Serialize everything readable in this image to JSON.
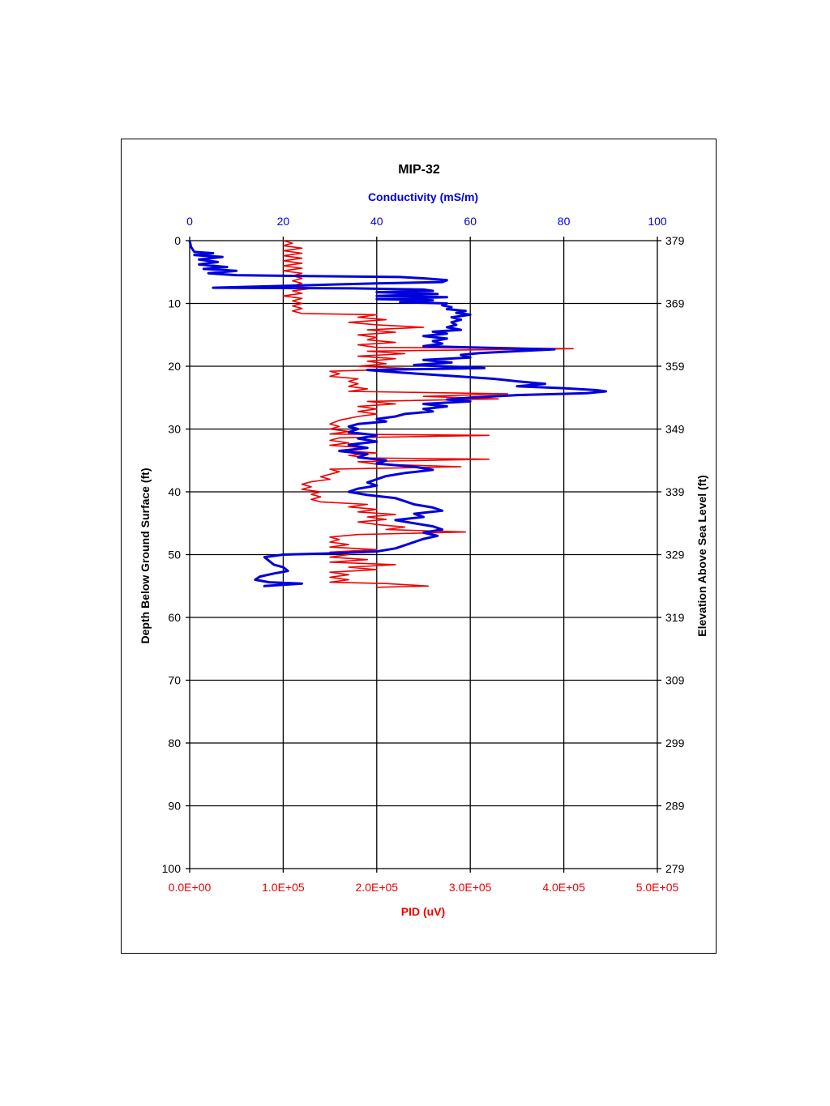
{
  "colors": {
    "conductivity": "#0000dd",
    "pid": "#ee0000",
    "text": "#000000",
    "grid": "#000000"
  },
  "chart_data": {
    "type": "line",
    "title": "MIP-32",
    "x_top": {
      "label": "Conductivity (mS/m)",
      "range": [
        0,
        100
      ],
      "ticks": [
        "0",
        "20",
        "40",
        "60",
        "80",
        "100"
      ]
    },
    "x_bottom": {
      "label": "PID (uV)",
      "range": [
        0,
        500000
      ],
      "ticks": [
        "0.0E+00",
        "1.0E+05",
        "2.0E+05",
        "3.0E+05",
        "4.0E+05",
        "5.0E+05"
      ]
    },
    "y_left": {
      "label": "Depth Below Ground Surface (ft)",
      "range": [
        0,
        100
      ],
      "inverted": true,
      "ticks": [
        "0",
        "10",
        "20",
        "30",
        "40",
        "50",
        "60",
        "70",
        "80",
        "90",
        "100"
      ]
    },
    "y_right": {
      "label": "Elevation Above Sea Level (ft)",
      "range": [
        379,
        279
      ],
      "ticks": [
        "379",
        "369",
        "359",
        "349",
        "339",
        "329",
        "319",
        "309",
        "299",
        "289",
        "279"
      ]
    },
    "grid": true,
    "series": [
      {
        "axis": "top",
        "color": "#0000dd",
        "points": [
          [
            0,
            0
          ],
          [
            0.3,
            1
          ],
          [
            1,
            1.8
          ],
          [
            5,
            2.0
          ],
          [
            1,
            2.3
          ],
          [
            7,
            2.6
          ],
          [
            2,
            3.0
          ],
          [
            6,
            3.4
          ],
          [
            2,
            3.8
          ],
          [
            8,
            4.2
          ],
          [
            3,
            4.5
          ],
          [
            10,
            4.8
          ],
          [
            4,
            5.2
          ],
          [
            10,
            5.5
          ],
          [
            20,
            5.6
          ],
          [
            45,
            5.8
          ],
          [
            50,
            6.0
          ],
          [
            55,
            6.3
          ],
          [
            54,
            6.6
          ],
          [
            40,
            6.8
          ],
          [
            30,
            7.0
          ],
          [
            5,
            7.5
          ],
          [
            35,
            7.6
          ],
          [
            50,
            7.8
          ],
          [
            52,
            8.0
          ],
          [
            40,
            8.2
          ],
          [
            53,
            8.5
          ],
          [
            40,
            8.8
          ],
          [
            55,
            9.0
          ],
          [
            40,
            9.3
          ],
          [
            52,
            9.5
          ],
          [
            45,
            9.8
          ],
          [
            55,
            10.0
          ],
          [
            54,
            10.3
          ],
          [
            56,
            10.6
          ],
          [
            55,
            10.9
          ],
          [
            59,
            11.2
          ],
          [
            57,
            11.5
          ],
          [
            60,
            11.8
          ],
          [
            56,
            12.2
          ],
          [
            58,
            12.6
          ],
          [
            56,
            13.0
          ],
          [
            57,
            13.4
          ],
          [
            55,
            13.8
          ],
          [
            58,
            14.2
          ],
          [
            52,
            14.5
          ],
          [
            55,
            14.8
          ],
          [
            50,
            15.2
          ],
          [
            55,
            15.6
          ],
          [
            52,
            16.0
          ],
          [
            54,
            16.4
          ],
          [
            50,
            16.8
          ],
          [
            60,
            17.0
          ],
          [
            78,
            17.3
          ],
          [
            70,
            17.6
          ],
          [
            62,
            17.9
          ],
          [
            58,
            18.2
          ],
          [
            60,
            18.6
          ],
          [
            50,
            19.0
          ],
          [
            56,
            19.4
          ],
          [
            48,
            19.8
          ],
          [
            63,
            20.3
          ],
          [
            38,
            20.6
          ],
          [
            45,
            21.0
          ],
          [
            55,
            21.5
          ],
          [
            65,
            22.0
          ],
          [
            70,
            22.4
          ],
          [
            76,
            22.8
          ],
          [
            70,
            23.2
          ],
          [
            80,
            23.5
          ],
          [
            87,
            23.8
          ],
          [
            89,
            24.0
          ],
          [
            85,
            24.3
          ],
          [
            70,
            24.6
          ],
          [
            60,
            25.0
          ],
          [
            55,
            25.3
          ],
          [
            60,
            25.6
          ],
          [
            50,
            26.0
          ],
          [
            55,
            26.4
          ],
          [
            50,
            26.8
          ],
          [
            52,
            27.2
          ],
          [
            46,
            27.6
          ],
          [
            44,
            28.0
          ],
          [
            40,
            28.4
          ],
          [
            42,
            28.8
          ],
          [
            36,
            29.2
          ],
          [
            34,
            29.6
          ],
          [
            36,
            30.0
          ],
          [
            34,
            30.5
          ],
          [
            40,
            31.0
          ],
          [
            36,
            31.5
          ],
          [
            40,
            32.0
          ],
          [
            34,
            32.5
          ],
          [
            38,
            33.0
          ],
          [
            32,
            33.5
          ],
          [
            38,
            34.0
          ],
          [
            36,
            34.5
          ],
          [
            42,
            35.0
          ],
          [
            40,
            35.5
          ],
          [
            48,
            36.0
          ],
          [
            52,
            36.5
          ],
          [
            46,
            37.0
          ],
          [
            42,
            37.5
          ],
          [
            40,
            38.0
          ],
          [
            38,
            38.5
          ],
          [
            40,
            39.0
          ],
          [
            36,
            39.5
          ],
          [
            34,
            40.0
          ],
          [
            38,
            40.5
          ],
          [
            44,
            41.0
          ],
          [
            46,
            41.5
          ],
          [
            48,
            42.0
          ],
          [
            52,
            42.5
          ],
          [
            54,
            43.0
          ],
          [
            48,
            43.5
          ],
          [
            50,
            44.0
          ],
          [
            44,
            44.5
          ],
          [
            48,
            45.0
          ],
          [
            52,
            45.5
          ],
          [
            54,
            46.0
          ],
          [
            50,
            46.5
          ],
          [
            53,
            47.0
          ],
          [
            50,
            47.5
          ],
          [
            48,
            48.0
          ],
          [
            46,
            48.5
          ],
          [
            44,
            49.0
          ],
          [
            40,
            49.5
          ],
          [
            30,
            49.8
          ],
          [
            20,
            50.0
          ],
          [
            16,
            50.4
          ],
          [
            17,
            51.0
          ],
          [
            18,
            51.6
          ],
          [
            20,
            52.0
          ],
          [
            21,
            52.6
          ],
          [
            18,
            53.0
          ],
          [
            15,
            53.5
          ],
          [
            14,
            54.0
          ],
          [
            17,
            54.4
          ],
          [
            24,
            54.6
          ],
          [
            16,
            55.0
          ],
          [
            16,
            55.2
          ]
        ]
      },
      {
        "axis": "bottom",
        "color": "#ee0000",
        "points": [
          [
            100000,
            0
          ],
          [
            110000,
            0.4
          ],
          [
            100000,
            0.8
          ],
          [
            120000,
            1.2
          ],
          [
            100000,
            1.6
          ],
          [
            120000,
            2.0
          ],
          [
            100000,
            2.4
          ],
          [
            120000,
            2.8
          ],
          [
            100000,
            3.2
          ],
          [
            120000,
            3.6
          ],
          [
            100000,
            4.0
          ],
          [
            120000,
            4.4
          ],
          [
            100000,
            4.8
          ],
          [
            120000,
            5.2
          ],
          [
            110000,
            5.6
          ],
          [
            120000,
            6.0
          ],
          [
            110000,
            6.4
          ],
          [
            120000,
            6.8
          ],
          [
            110000,
            7.2
          ],
          [
            130000,
            7.6
          ],
          [
            110000,
            8.0
          ],
          [
            120000,
            8.4
          ],
          [
            100000,
            8.8
          ],
          [
            120000,
            9.2
          ],
          [
            110000,
            9.6
          ],
          [
            120000,
            10.0
          ],
          [
            110000,
            10.4
          ],
          [
            120000,
            10.8
          ],
          [
            110000,
            11.2
          ],
          [
            120000,
            11.6
          ],
          [
            200000,
            11.8
          ],
          [
            180000,
            12.2
          ],
          [
            210000,
            12.6
          ],
          [
            170000,
            13.0
          ],
          [
            200000,
            13.4
          ],
          [
            250000,
            13.8
          ],
          [
            190000,
            14.2
          ],
          [
            220000,
            14.6
          ],
          [
            180000,
            15.0
          ],
          [
            200000,
            15.4
          ],
          [
            190000,
            15.8
          ],
          [
            220000,
            16.2
          ],
          [
            180000,
            16.6
          ],
          [
            200000,
            17.0
          ],
          [
            410000,
            17.2
          ],
          [
            190000,
            17.6
          ],
          [
            230000,
            18.0
          ],
          [
            180000,
            18.4
          ],
          [
            220000,
            18.8
          ],
          [
            190000,
            19.2
          ],
          [
            210000,
            19.6
          ],
          [
            180000,
            20.0
          ],
          [
            240000,
            20.4
          ],
          [
            150000,
            20.8
          ],
          [
            160000,
            21.2
          ],
          [
            150000,
            21.6
          ],
          [
            180000,
            22.0
          ],
          [
            170000,
            22.4
          ],
          [
            180000,
            22.8
          ],
          [
            170000,
            23.2
          ],
          [
            190000,
            23.6
          ],
          [
            170000,
            24.0
          ],
          [
            340000,
            24.4
          ],
          [
            250000,
            24.8
          ],
          [
            330000,
            25.2
          ],
          [
            190000,
            25.6
          ],
          [
            220000,
            26.0
          ],
          [
            180000,
            26.4
          ],
          [
            200000,
            26.8
          ],
          [
            180000,
            27.2
          ],
          [
            200000,
            27.6
          ],
          [
            180000,
            28.0
          ],
          [
            160000,
            28.6
          ],
          [
            150000,
            29.2
          ],
          [
            160000,
            29.6
          ],
          [
            150000,
            30.0
          ],
          [
            170000,
            30.4
          ],
          [
            150000,
            30.8
          ],
          [
            320000,
            31.0
          ],
          [
            160000,
            31.4
          ],
          [
            150000,
            31.8
          ],
          [
            170000,
            32.2
          ],
          [
            150000,
            32.6
          ],
          [
            190000,
            33.0
          ],
          [
            160000,
            33.4
          ],
          [
            200000,
            33.8
          ],
          [
            170000,
            34.2
          ],
          [
            190000,
            34.6
          ],
          [
            320000,
            34.8
          ],
          [
            180000,
            35.2
          ],
          [
            200000,
            35.6
          ],
          [
            290000,
            36.0
          ],
          [
            150000,
            36.4
          ],
          [
            160000,
            36.8
          ],
          [
            150000,
            37.2
          ],
          [
            140000,
            37.6
          ],
          [
            150000,
            38.0
          ],
          [
            130000,
            38.4
          ],
          [
            120000,
            38.8
          ],
          [
            130000,
            39.2
          ],
          [
            120000,
            39.6
          ],
          [
            140000,
            40.0
          ],
          [
            130000,
            40.4
          ],
          [
            140000,
            40.8
          ],
          [
            130000,
            41.2
          ],
          [
            140000,
            41.6
          ],
          [
            190000,
            42.0
          ],
          [
            170000,
            42.4
          ],
          [
            200000,
            42.8
          ],
          [
            180000,
            43.2
          ],
          [
            220000,
            43.6
          ],
          [
            190000,
            44.0
          ],
          [
            210000,
            44.4
          ],
          [
            180000,
            44.8
          ],
          [
            200000,
            45.2
          ],
          [
            230000,
            45.6
          ],
          [
            210000,
            46.0
          ],
          [
            295000,
            46.4
          ],
          [
            180000,
            46.8
          ],
          [
            150000,
            47.2
          ],
          [
            160000,
            47.6
          ],
          [
            150000,
            48.0
          ],
          [
            170000,
            48.4
          ],
          [
            150000,
            48.8
          ],
          [
            200000,
            49.2
          ],
          [
            150000,
            49.6
          ],
          [
            170000,
            50.0
          ],
          [
            150000,
            50.4
          ],
          [
            190000,
            50.8
          ],
          [
            150000,
            51.2
          ],
          [
            220000,
            51.6
          ],
          [
            170000,
            52.0
          ],
          [
            200000,
            52.4
          ],
          [
            150000,
            52.8
          ],
          [
            170000,
            53.2
          ],
          [
            150000,
            53.6
          ],
          [
            170000,
            54.0
          ],
          [
            150000,
            54.4
          ],
          [
            210000,
            54.6
          ],
          [
            255000,
            55.0
          ],
          [
            200000,
            55.2
          ]
        ]
      }
    ]
  }
}
